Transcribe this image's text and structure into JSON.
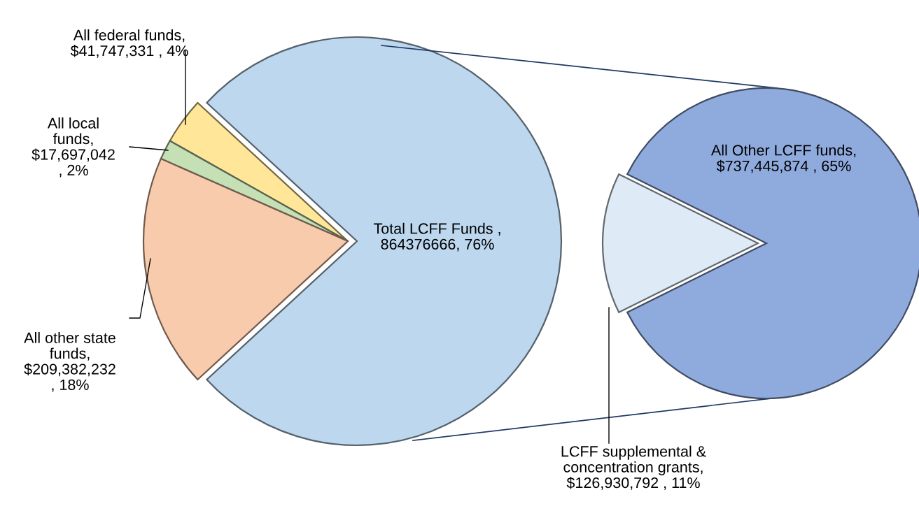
{
  "chart_data": [
    {
      "type": "pie",
      "categories": [
        "Total LCFF Funds ,\n864376666, 76%",
        "All federal funds,\n$41,747,331 , 4%",
        "All local\nfunds,\n$17,697,042\n, 2%",
        "All other state\nfunds,\n$209,382,232\n, 18%"
      ],
      "values": [
        864376666,
        41747331,
        17697042,
        209382232
      ],
      "colors": [
        "#bdd7ee",
        "#ffe699",
        "#c5e0b4",
        "#f8cbad"
      ]
    },
    {
      "type": "pie",
      "categories": [
        "All Other LCFF funds,\n$737,445,874 , 65%",
        "LCFF supplemental &\nconcentration grants,\n$126,930,792 , 11%"
      ],
      "values": [
        737445874,
        126930792
      ],
      "colors": [
        "#8faadc",
        "#deebf7"
      ]
    }
  ]
}
